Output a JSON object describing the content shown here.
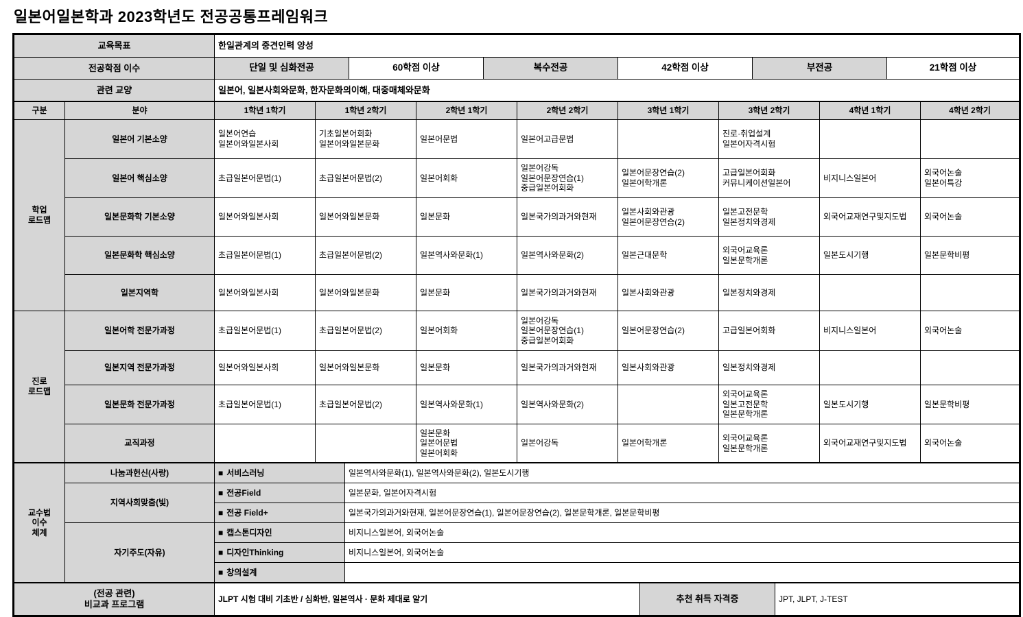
{
  "title": "일본어일본학과 2023학년도 전공공통프레임워크",
  "colors": {
    "cell_gray": "#d6d6d6",
    "border": "#000000",
    "background": "#ffffff"
  },
  "square_icon": "■",
  "top": {
    "rows": [
      {
        "label": "교육목표",
        "cells": [
          {
            "text": "한일관계의 중견인력 양성",
            "span": 6,
            "gray": false,
            "align": "left",
            "small": true
          }
        ]
      },
      {
        "label": "전공학점 이수",
        "cells": [
          {
            "text": "단일 및 심화전공",
            "gray": true
          },
          {
            "text": "60학점 이상",
            "gray": false
          },
          {
            "text": "복수전공",
            "gray": true
          },
          {
            "text": "42학점 이상",
            "gray": false
          },
          {
            "text": "부전공",
            "gray": true
          },
          {
            "text": "21학점 이상",
            "gray": false
          }
        ]
      },
      {
        "label": "관련 교양",
        "cells": [
          {
            "text": "일본어, 일본사회와문화, 한자문화의이해, 대중매체와문화",
            "span": 6,
            "gray": false,
            "align": "left",
            "small": true
          }
        ]
      }
    ]
  },
  "grid": {
    "col_headers": [
      "구분",
      "분야",
      "1학년 1학기",
      "1학년 2학기",
      "2학년 1학기",
      "2학년 2학기",
      "3학년 1학기",
      "3학년 2학기",
      "4학년 1학기",
      "4학년 2학기"
    ],
    "sections": [
      {
        "name": "학업\n로드맵",
        "rows": [
          {
            "field": "일본어 기본소양",
            "cells": [
              "일본어연습\n일본어와일본사회",
              "기초일본어회화\n일본어와일본문화",
              "일본어문법",
              "일본어고급문법",
              "",
              "진로·취업설계\n일본어자격시험",
              "",
              ""
            ]
          },
          {
            "field": "일본어 핵심소양",
            "cells": [
              "초급일본어문법(1)",
              "초급일본어문법(2)",
              "일본어회화",
              "일본어강독\n일본어문장연습(1)\n중급일본어회화",
              "일본어문장연습(2)\n일본어학개론",
              "고급일본어회화\n커뮤니케이션일본어",
              "비지니스일본어",
              "외국어논술\n일본어특강"
            ]
          },
          {
            "field": "일본문화학 기본소양",
            "cells": [
              "일본어와일본사회",
              "일본어와일본문화",
              "일본문화",
              "일본국가의과거와현재",
              "일본사회와관광\n일본어문장연습(2)",
              "일본고전문학\n일본정치와경제",
              "외국어교재연구및지도법",
              "외국어논술"
            ]
          },
          {
            "field": "일본문화학 핵심소양",
            "cells": [
              "초급일본어문법(1)",
              "초급일본어문법(2)",
              "일본역사와문화(1)",
              "일본역사와문화(2)",
              "일본근대문학",
              "외국어교육론\n일본문학개론",
              "일본도시기행",
              "일본문학비평"
            ]
          },
          {
            "field": "일본지역학",
            "cells": [
              "일본어와일본사회",
              "일본어와일본문화",
              "일본문화",
              "일본국가의과거와현재",
              "일본사회와관광",
              "일본정치와경제",
              "",
              ""
            ]
          }
        ]
      },
      {
        "name": "진로\n로드맵",
        "rows": [
          {
            "field": "일본어학 전문가과정",
            "cells": [
              "초급일본어문법(1)",
              "초급일본어문법(2)",
              "일본어회화",
              "일본어강독\n일본어문장연습(1)\n중급일본어회화",
              "일본어문장연습(2)",
              "고급일본어회화",
              "비지니스일본어",
              "외국어논술"
            ]
          },
          {
            "field": "일본지역 전문가과정",
            "cells": [
              "일본어와일본사회",
              "일본어와일본문화",
              "일본문화",
              "일본국가의과거와현재",
              "일본사회와관광",
              "일본정치와경제",
              "",
              ""
            ]
          },
          {
            "field": "일본문화 전문가과정",
            "cells": [
              "초급일본어문법(1)",
              "초급일본어문법(2)",
              "일본역사와문화(1)",
              "일본역사와문화(2)",
              "",
              "외국어교육론\n일본고전문학\n일본문학개론",
              "일본도시기행",
              "일본문학비평"
            ]
          },
          {
            "field": "교직과정",
            "cells": [
              "",
              "",
              "일본문화\n일본어문법\n일본어회화",
              "일본어강독",
              "일본어학개론",
              "외국어교육론\n일본문학개론",
              "외국어교재연구및지도법",
              "외국어논술"
            ]
          }
        ]
      }
    ]
  },
  "method": {
    "section_label": "교수법\n이수\n체계",
    "groups": [
      {
        "label": "나눔과헌신(사랑)",
        "rows": [
          {
            "method": "서비스러닝",
            "content": "일본역사와문화(1), 일본역사와문화(2), 일본도시기행"
          }
        ]
      },
      {
        "label": "지역사회맞춤(빛)",
        "rows": [
          {
            "method": "전공Field",
            "content": "일본문화, 일본어자격시험"
          },
          {
            "method": "전공 Field+",
            "content": "일본국가의과거와현재, 일본어문장연습(1), 일본어문장연습(2), 일본문학개론, 일본문학비평"
          }
        ]
      },
      {
        "label": "자기주도(자유)",
        "rows": [
          {
            "method": "캡스톤디자인",
            "content": "비지니스일본어, 외국어논술"
          },
          {
            "method": "디자인Thinking",
            "content": "비지니스일본어, 외국어논술"
          },
          {
            "method": "창의설계",
            "content": ""
          }
        ]
      }
    ]
  },
  "bottom": {
    "label": "(전공 관련)\n비교과 프로그램",
    "program": "JLPT 시험 대비 기초반 / 심화반, 일본역사 · 문화 제대로 알기",
    "cert_label": "추천 취득 자격증",
    "certs": "JPT, JLPT, J-TEST"
  }
}
